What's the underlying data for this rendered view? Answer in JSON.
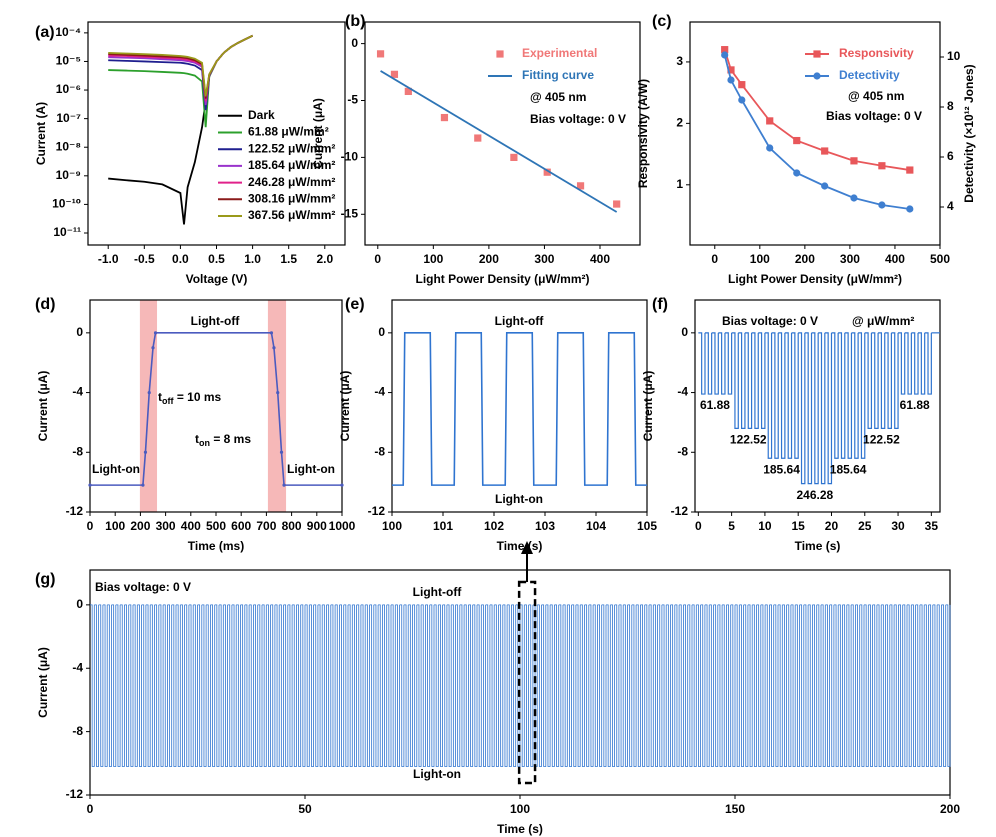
{
  "chart_data": [
    {
      "type": "line",
      "panel": "(a)",
      "xlabel": "Voltage (V)",
      "ylabel": "Current (A)",
      "log": true,
      "xlim": [
        -1.28,
        2.28
      ],
      "xticks": [
        {
          "value": -1,
          "label": "-1.0"
        },
        -0.5,
        {
          "value": 0,
          "label": "0.0"
        },
        0.5,
        {
          "value": 1,
          "label": "1.0"
        },
        1.5,
        {
          "value": 2,
          "label": "2.0"
        }
      ],
      "ylim": [
        3.8e-12,
        0.00024
      ],
      "yticks": [
        {
          "value": 0.0001,
          "label": "10⁻⁴"
        },
        {
          "value": 1e-05,
          "label": "10⁻⁵"
        },
        {
          "value": 1e-06,
          "label": "10⁻⁶"
        },
        {
          "value": 1e-07,
          "label": "10⁻⁷"
        },
        {
          "value": 1e-08,
          "label": "10⁻⁸"
        },
        {
          "value": 1e-09,
          "label": "10⁻⁹"
        },
        {
          "value": 1e-10,
          "label": "10⁻¹⁰"
        },
        {
          "value": 1e-11,
          "label": "10⁻¹¹"
        }
      ],
      "legend": "lower right",
      "x": [
        -1,
        -0.75,
        -0.5,
        -0.25,
        0,
        0.05,
        0.1,
        0.2,
        0.3,
        0.35,
        0.4,
        0.5,
        0.6,
        0.7,
        0.8,
        0.9,
        1
      ],
      "series": [
        {
          "name": "Dark",
          "color": "#000000",
          "mode": "lines",
          "values": [
            8e-10,
            7e-10,
            6.2e-10,
            5e-10,
            2.5e-10,
            2e-11,
            4e-10,
            3e-09,
            5e-08,
            4e-07,
            3e-06,
            1e-05,
            2e-05,
            3.2e-05,
            4.5e-05,
            6e-05,
            8e-05
          ]
        },
        {
          "name": "61.88 μW/mm²",
          "color": "#2ca02c",
          "mode": "lines",
          "values": [
            5e-06,
            4.8e-06,
            4.6e-06,
            4.3e-06,
            4e-06,
            3.9e-06,
            3.7e-06,
            3.2e-06,
            2e-06,
            5e-08,
            3e-06,
            1e-05,
            2e-05,
            3.2e-05,
            4.5e-05,
            6e-05,
            8e-05
          ]
        },
        {
          "name": "122.52 μW/mm²",
          "color": "#1f1f8f",
          "mode": "lines",
          "values": [
            1.1e-05,
            1.05e-05,
            1e-05,
            9.5e-06,
            9e-06,
            8.7e-06,
            8.3e-06,
            7.2e-06,
            5e-06,
            2e-07,
            3.2e-06,
            1e-05,
            2e-05,
            3.2e-05,
            4.5e-05,
            6e-05,
            8e-05
          ]
        },
        {
          "name": "185.64 μW/mm²",
          "color": "#9932cc",
          "mode": "lines",
          "values": [
            1.4e-05,
            1.35e-05,
            1.3e-05,
            1.2e-05,
            1.1e-05,
            1.07e-05,
            1.03e-05,
            9e-06,
            6.5e-06,
            3e-07,
            3.3e-06,
            1e-05,
            2e-05,
            3.2e-05,
            4.5e-05,
            6e-05,
            8e-05
          ]
        },
        {
          "name": "246.28 μW/mm²",
          "color": "#e0218a",
          "mode": "lines",
          "values": [
            1.6e-05,
            1.55e-05,
            1.45e-05,
            1.35e-05,
            1.25e-05,
            1.2e-05,
            1.15e-05,
            1e-05,
            7.5e-06,
            4e-07,
            3.4e-06,
            1e-05,
            2e-05,
            3.2e-05,
            4.5e-05,
            6e-05,
            8e-05
          ]
        },
        {
          "name": "308.16 μW/mm²",
          "color": "#8b1a1a",
          "mode": "lines",
          "values": [
            1.8e-05,
            1.7e-05,
            1.6e-05,
            1.5e-05,
            1.4e-05,
            1.35e-05,
            1.3e-05,
            1.1e-05,
            8e-06,
            5e-07,
            3.5e-06,
            1e-05,
            2e-05,
            3.2e-05,
            4.5e-05,
            6e-05,
            8e-05
          ]
        },
        {
          "name": "367.56 μW/mm²",
          "color": "#9a9a1a",
          "mode": "lines",
          "values": [
            2e-05,
            1.9e-05,
            1.8e-05,
            1.7e-05,
            1.55e-05,
            1.5e-05,
            1.45e-05,
            1.25e-05,
            9e-06,
            6e-07,
            3.6e-06,
            1e-05,
            2e-05,
            3.2e-05,
            4.5e-05,
            6e-05,
            8e-05
          ]
        }
      ]
    },
    {
      "type": "scatter",
      "panel": "(b)",
      "xlabel": "Light Power Density (μW/mm²)",
      "ylabel": "Current (μA)",
      "xlim": [
        -23,
        472
      ],
      "xticks": [
        0,
        100,
        200,
        300,
        400
      ],
      "ylim": [
        -17.7,
        1.9
      ],
      "yticks": [
        0,
        -5,
        -10,
        -15
      ],
      "legend": "upper right",
      "annotations": [
        "@ 405 nm",
        "Bias voltage: 0 V"
      ],
      "series": [
        {
          "name": "Experimental",
          "color": "#f07878",
          "mode": "markers",
          "marker": "square",
          "x": [
            5,
            30,
            55,
            120,
            180,
            245,
            305,
            365,
            430
          ],
          "values": [
            -0.9,
            -2.7,
            -4.2,
            -6.5,
            -8.3,
            -10,
            -11.3,
            -12.5,
            -14.1
          ]
        },
        {
          "name": "Fitting curve",
          "color": "#2e75b6",
          "mode": "lines",
          "x": [
            5,
            430
          ],
          "values": [
            -2.4,
            -14.8
          ]
        }
      ]
    },
    {
      "type": "line",
      "panel": "(c)",
      "xlabel": "Light Power Density (μW/mm²)",
      "ylabel": "Responsivity (A/W)",
      "y2label": "Detectivity (×10¹² Jones)",
      "xlim": [
        -55,
        500
      ],
      "xticks": [
        0,
        100,
        200,
        300,
        400,
        500
      ],
      "ylim": [
        0.02,
        3.65
      ],
      "yticks": [
        1,
        2,
        3
      ],
      "y2lim": [
        2.48,
        11.4
      ],
      "y2ticks": [
        4,
        6,
        8,
        10
      ],
      "legend": "upper right",
      "annotations": [
        "@ 405 nm",
        "Bias voltage: 0 V"
      ],
      "series": [
        {
          "name": "Responsivity",
          "color": "#e8575a",
          "mode": "lines+markers",
          "marker": "square",
          "x": [
            22,
            36,
            60,
            122,
            182,
            244,
            309,
            371,
            433
          ],
          "values": [
            3.2,
            2.87,
            2.63,
            2.04,
            1.72,
            1.55,
            1.39,
            1.31,
            1.24
          ]
        },
        {
          "name": "Detectivity",
          "color": "#3f7fd0",
          "mode": "lines+markers",
          "marker": "circle",
          "axis": "y2",
          "x": [
            22,
            36,
            60,
            122,
            182,
            244,
            309,
            371,
            433
          ],
          "values": [
            10.08,
            9.08,
            8.28,
            6.36,
            5.36,
            4.84,
            4.36,
            4.08,
            3.92
          ]
        }
      ]
    },
    {
      "type": "line",
      "panel": "(d)",
      "xlabel": "Time (ms)",
      "ylabel": "Current (μA)",
      "xlim": [
        0,
        1000
      ],
      "xticks": [
        0,
        100,
        200,
        300,
        400,
        500,
        600,
        700,
        800,
        900,
        1000
      ],
      "ylim": [
        -12,
        2.2
      ],
      "yticks": [
        0,
        -4,
        -8,
        -12
      ],
      "shaded": [
        [
          198,
          266
        ],
        [
          706,
          778
        ]
      ],
      "shaded_color": "#f6b8b8",
      "annotations": [
        "Light-off",
        "Light-on",
        "Light-on",
        [
          "t",
          "off",
          " = 10 ms"
        ],
        [
          "t",
          "on",
          " = 8 ms"
        ]
      ],
      "series": [
        {
          "color": "#4b5bbf",
          "mode": "lines+markers",
          "marker": "circle",
          "x": [
            0,
            210,
            220,
            235,
            250,
            260,
            720,
            730,
            745,
            760,
            770,
            1000
          ],
          "values": [
            -10.2,
            -10.2,
            -8,
            -4,
            -1,
            0,
            0,
            -1,
            -4,
            -8,
            -10.2,
            -10.2
          ]
        }
      ]
    },
    {
      "type": "line",
      "panel": "(e)",
      "xlabel": "Time (s)",
      "ylabel": "Current (μA)",
      "xlim": [
        100,
        105
      ],
      "xticks": [
        100,
        101,
        102,
        103,
        104,
        105
      ],
      "ylim": [
        -12,
        2.2
      ],
      "yticks": [
        0,
        -4,
        -8,
        -12
      ],
      "annotations": [
        "Light-off",
        "Light-on"
      ],
      "series": [
        {
          "color": "#2f74d0",
          "mode": "lines",
          "x": [
            100,
            100.22,
            100.25,
            100.75,
            100.78,
            101.22,
            101.25,
            101.75,
            101.78,
            102.22,
            102.25,
            102.75,
            102.78,
            103.22,
            103.25,
            103.75,
            103.78,
            104.22,
            104.25,
            104.75,
            104.78,
            105
          ],
          "values": [
            -10.2,
            -10.2,
            0,
            0,
            -10.2,
            -10.2,
            0,
            0,
            -10.2,
            -10.2,
            0,
            0,
            -10.2,
            -10.2,
            0,
            0,
            -10.2,
            -10.2,
            0,
            0,
            -10.2,
            -10.2
          ]
        }
      ]
    },
    {
      "type": "square-wave",
      "panel": "(f)",
      "xlabel": "Time (s)",
      "ylabel": "Current (μA)",
      "xlim": [
        -0.5,
        36.3
      ],
      "xticks": [
        0,
        5,
        10,
        15,
        20,
        25,
        30,
        35
      ],
      "ylim": [
        -12,
        2.2
      ],
      "yticks": [
        0,
        -4,
        -8,
        -12
      ],
      "annotations": [
        "Bias voltage: 0 V",
        "@ μW/mm²"
      ],
      "color": "#2f74d0",
      "period": 1,
      "high": 0,
      "segments": [
        {
          "start": 0,
          "end": 5,
          "low": -4.1,
          "label": "61.88"
        },
        {
          "start": 5,
          "end": 10,
          "low": -6.4,
          "label": "122.52"
        },
        {
          "start": 10,
          "end": 15,
          "low": -8.4,
          "label": "185.64"
        },
        {
          "start": 15,
          "end": 20,
          "low": -10.1,
          "label": "246.28"
        },
        {
          "start": 20,
          "end": 25,
          "low": -8.4,
          "label": "185.64"
        },
        {
          "start": 25,
          "end": 30,
          "low": -6.4,
          "label": "122.52"
        },
        {
          "start": 30,
          "end": 35,
          "low": -4.1,
          "label": "61.88"
        }
      ]
    },
    {
      "type": "square-wave",
      "panel": "(g)",
      "xlabel": "Time (s)",
      "ylabel": "Current (μA)",
      "xlim": [
        0,
        200
      ],
      "xticks": [
        0,
        50,
        100,
        150,
        200
      ],
      "ylim": [
        -12,
        2.2
      ],
      "yticks": [
        0,
        -4,
        -8,
        -12
      ],
      "annotations": [
        "Bias voltage: 0 V",
        "Light-off",
        "Light-on"
      ],
      "color": "#2f74d0",
      "period": 1,
      "high": 0,
      "segments": [
        {
          "start": 0,
          "end": 200,
          "low": -10.2
        }
      ],
      "highlight": [
        99.8,
        103.5
      ]
    }
  ]
}
